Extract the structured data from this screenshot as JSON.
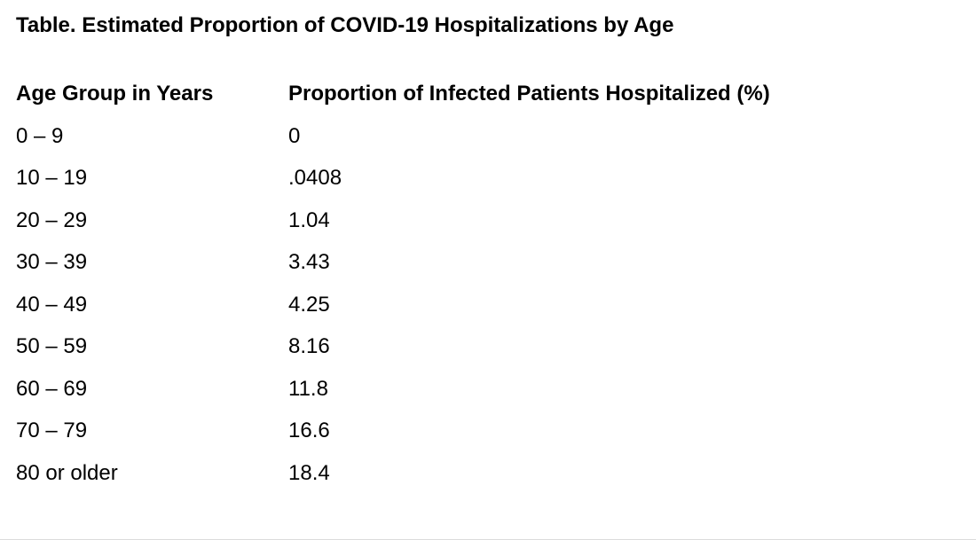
{
  "page": {
    "title": "Table. Estimated Proportion of COVID-19 Hospitalizations by Age"
  },
  "table": {
    "columns": [
      "Age Group in Years",
      "Proportion of Infected Patients Hospitalized (%)"
    ],
    "rows": [
      {
        "age_group": "0 – 9",
        "proportion": "0"
      },
      {
        "age_group": "10 – 19",
        "proportion": ".0408"
      },
      {
        "age_group": "20 – 29",
        "proportion": "1.04"
      },
      {
        "age_group": "30 – 39",
        "proportion": "3.43"
      },
      {
        "age_group": "40 – 49",
        "proportion": "4.25"
      },
      {
        "age_group": "50 – 59",
        "proportion": "8.16"
      },
      {
        "age_group": "60 – 69",
        "proportion": "11.8"
      },
      {
        "age_group": "70 – 79",
        "proportion": "16.6"
      },
      {
        "age_group": "80 or older",
        "proportion": "18.4"
      }
    ]
  },
  "chart_data": {
    "type": "table",
    "title": "Table. Estimated Proportion of COVID-19 Hospitalizations by Age",
    "columns": [
      "Age Group in Years",
      "Proportion of Infected Patients Hospitalized (%)"
    ],
    "categories": [
      "0 – 9",
      "10 – 19",
      "20 – 29",
      "30 – 39",
      "40 – 49",
      "50 – 59",
      "60 – 69",
      "70 – 79",
      "80 or older"
    ],
    "values": [
      0,
      0.0408,
      1.04,
      3.43,
      4.25,
      8.16,
      11.8,
      16.6,
      18.4
    ]
  },
  "colors": {
    "text": "#000000",
    "background": "#ffffff",
    "bottom_divider": "#dcdcdc"
  }
}
